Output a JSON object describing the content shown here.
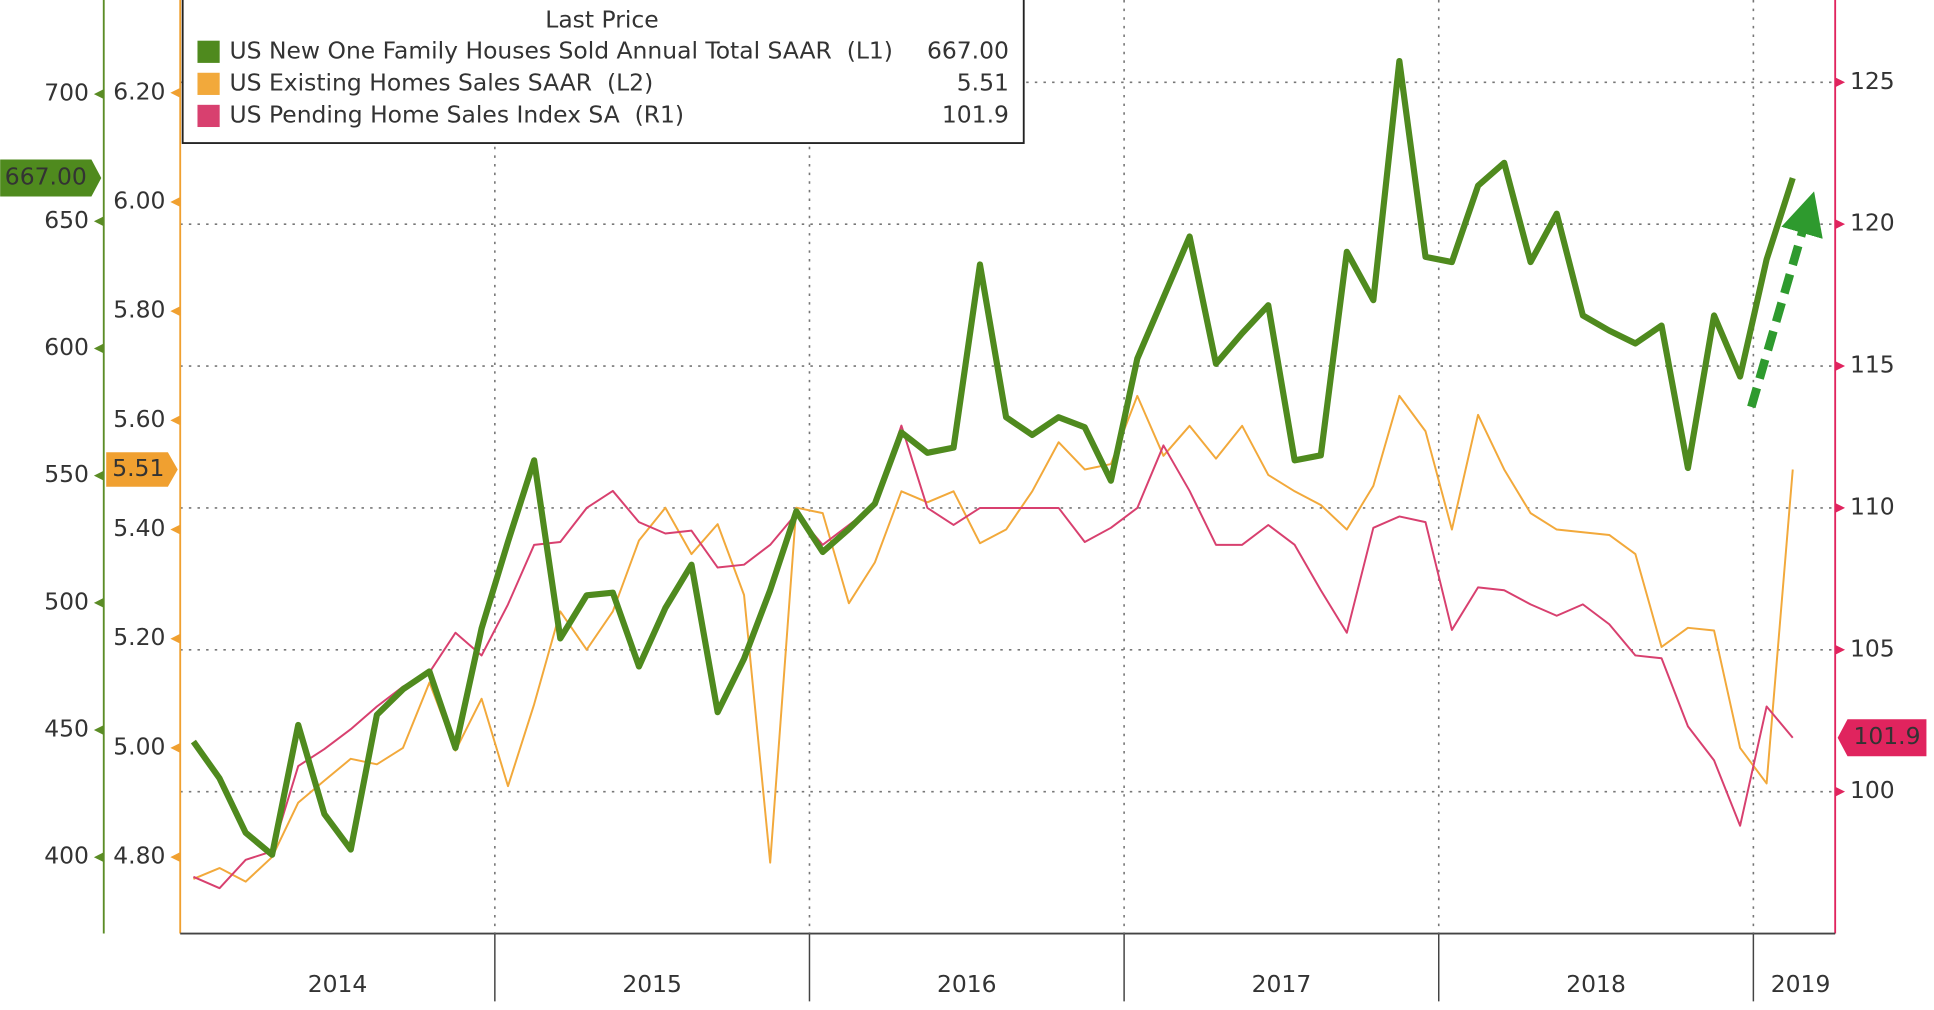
{
  "chart_data": {
    "type": "line",
    "legend_title": "Last Price",
    "x": [
      2014.042,
      2014.125,
      2014.208,
      2014.292,
      2014.375,
      2014.458,
      2014.542,
      2014.625,
      2014.708,
      2014.792,
      2014.875,
      2014.958,
      2015.042,
      2015.125,
      2015.208,
      2015.292,
      2015.375,
      2015.458,
      2015.542,
      2015.625,
      2015.708,
      2015.792,
      2015.875,
      2015.958,
      2016.042,
      2016.125,
      2016.208,
      2016.292,
      2016.375,
      2016.458,
      2016.542,
      2016.625,
      2016.708,
      2016.792,
      2016.875,
      2016.958,
      2017.042,
      2017.125,
      2017.208,
      2017.292,
      2017.375,
      2017.458,
      2017.542,
      2017.625,
      2017.708,
      2017.792,
      2017.875,
      2017.958,
      2018.042,
      2018.125,
      2018.208,
      2018.292,
      2018.375,
      2018.458,
      2018.542,
      2018.625,
      2018.708,
      2018.792,
      2018.875,
      2018.958,
      2019.042,
      2019.125
    ],
    "xlim": [
      2014,
      2019.26
    ],
    "xticks": [
      {
        "value": 2014.5,
        "label": "2014"
      },
      {
        "value": 2015.5,
        "label": "2015"
      },
      {
        "value": 2016.5,
        "label": "2016"
      },
      {
        "value": 2017.5,
        "label": "2017"
      },
      {
        "value": 2018.5,
        "label": "2018"
      },
      {
        "value": 2019.15,
        "label": "2019"
      }
    ],
    "xgrid": [
      2015,
      2016,
      2017,
      2018,
      2019
    ],
    "ylim": [
      370,
      737
    ],
    "yticks": [
      400,
      450,
      500,
      550,
      600,
      650,
      700
    ],
    "y1bis_lim": [
      4.66,
      6.37
    ],
    "y1bis_ticks": [
      {
        "value": 4.8,
        "label": "4.80"
      },
      {
        "value": 5.0,
        "label": "5.00"
      },
      {
        "value": 5.2,
        "label": "5.20"
      },
      {
        "value": 5.4,
        "label": "5.40"
      },
      {
        "value": 5.6,
        "label": "5.60"
      },
      {
        "value": 5.8,
        "label": "5.80"
      },
      {
        "value": 6.0,
        "label": "6.00"
      },
      {
        "value": 6.2,
        "label": "6.20"
      }
    ],
    "y2lim": [
      95,
      127.9
    ],
    "y2ticks": [
      100,
      105,
      110,
      115,
      120,
      125
    ],
    "grid": true,
    "series": [
      {
        "name": "US New One Family Houses Sold Annual Total SAAR  (L1)",
        "color": "#4f8a1e",
        "axis": "y",
        "values": [
          445.5,
          431,
          409.6,
          401,
          452,
          417,
          403,
          456,
          466,
          473,
          443,
          490,
          524,
          556,
          486,
          503,
          504,
          475,
          498,
          515,
          457,
          478,
          505,
          536,
          520,
          529,
          539,
          567,
          559,
          561,
          633,
          573,
          566,
          573,
          569,
          548,
          596,
          620,
          644,
          594,
          606,
          617,
          556,
          558,
          638,
          619,
          713,
          636,
          634,
          664,
          673,
          634,
          653,
          613,
          607,
          602,
          609,
          553,
          613,
          589,
          635,
          667
        ],
        "value_labels": [
          null,
          null,
          null,
          null,
          null,
          null,
          null,
          null,
          null,
          null,
          null,
          null,
          null,
          null,
          null,
          null,
          null,
          null,
          null,
          null,
          null,
          null,
          null,
          null,
          null,
          null,
          null,
          null,
          null,
          null,
          null,
          null,
          null,
          null,
          null,
          null,
          null,
          null,
          null,
          null,
          null,
          null,
          null,
          null,
          null,
          null,
          null,
          null,
          null,
          null,
          null,
          null,
          null,
          null,
          null,
          null,
          null,
          null,
          null,
          null,
          null,
          "667.00"
        ]
      },
      {
        "name": "US Existing Homes Sales SAAR  (L2)",
        "color": "#f2a93b",
        "axis": "y1bis",
        "values": [
          4.76,
          4.78,
          4.755,
          4.8,
          4.9,
          4.94,
          4.98,
          4.97,
          5.0,
          5.12,
          4.995,
          5.09,
          4.93,
          5.08,
          5.25,
          5.18,
          5.25,
          5.38,
          5.44,
          5.355,
          5.41,
          5.28,
          4.79,
          5.44,
          5.43,
          5.265,
          5.34,
          5.47,
          5.45,
          5.47,
          5.375,
          5.4,
          5.47,
          5.56,
          5.51,
          5.52,
          5.645,
          5.535,
          5.59,
          5.53,
          5.59,
          5.5,
          5.47,
          5.445,
          5.4,
          5.48,
          5.645,
          5.58,
          5.4,
          5.61,
          5.51,
          5.43,
          5.4,
          5.395,
          5.39,
          5.355,
          5.185,
          5.22,
          5.215,
          5.0,
          4.935,
          5.51
        ],
        "value_labels": [
          null,
          null,
          null,
          null,
          null,
          null,
          null,
          null,
          null,
          null,
          null,
          null,
          null,
          null,
          null,
          null,
          null,
          null,
          null,
          null,
          null,
          null,
          null,
          null,
          null,
          null,
          null,
          null,
          null,
          null,
          null,
          null,
          null,
          null,
          null,
          null,
          null,
          null,
          null,
          null,
          null,
          null,
          null,
          null,
          null,
          null,
          null,
          null,
          null,
          null,
          null,
          null,
          null,
          null,
          null,
          null,
          null,
          null,
          null,
          null,
          null,
          "5.51"
        ]
      },
      {
        "name": "US Pending Home Sales Index SA  (R1)",
        "color": "#d8406f",
        "axis": "y2",
        "values": [
          97.0,
          96.6,
          97.6,
          97.9,
          100.9,
          101.5,
          102.2,
          103.0,
          103.7,
          104.2,
          105.6,
          104.8,
          106.6,
          108.7,
          108.8,
          110.0,
          110.6,
          109.5,
          109.1,
          109.2,
          107.9,
          108.0,
          108.7,
          109.8,
          108.7,
          109.4,
          110.1,
          112.9,
          110.0,
          109.4,
          110.0,
          110.0,
          110.0,
          110.0,
          108.8,
          109.3,
          110.0,
          112.2,
          110.6,
          108.7,
          108.7,
          109.4,
          108.7,
          107.1,
          105.6,
          109.3,
          109.7,
          109.5,
          105.7,
          107.2,
          107.1,
          106.6,
          106.2,
          106.6,
          105.9,
          104.8,
          104.7,
          102.3,
          101.1,
          98.8,
          103.0,
          101.9
        ]
      }
    ]
  }
}
